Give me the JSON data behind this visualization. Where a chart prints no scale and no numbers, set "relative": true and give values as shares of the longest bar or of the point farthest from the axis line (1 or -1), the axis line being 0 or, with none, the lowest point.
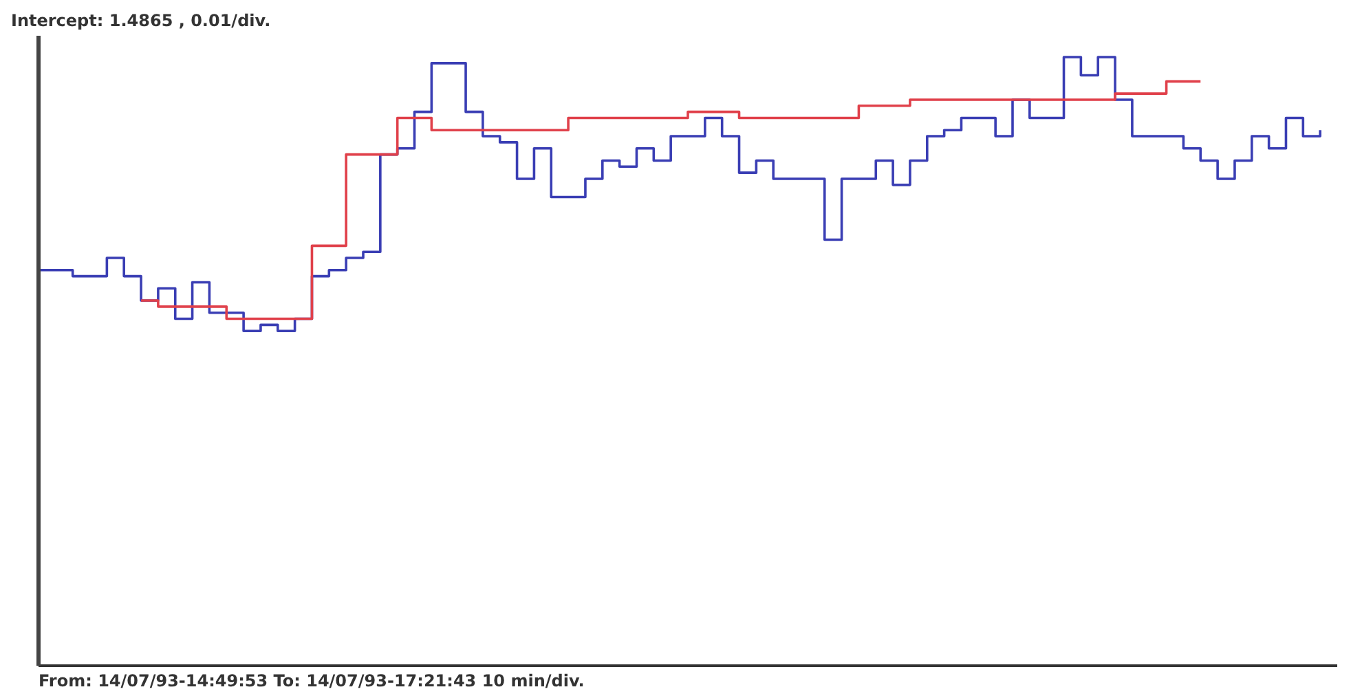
{
  "chart_data": {
    "type": "step",
    "title": "Intercept: 1.4865 , 0.01/div.",
    "annotations": [
      "From: 14/07/93-14:49:53 To: 14/07/93-17:21:43 10 min/div."
    ],
    "relative": true,
    "categories": [
      null,
      null,
      null,
      null,
      null,
      null,
      null,
      null,
      null,
      null,
      null,
      null,
      null,
      null,
      null,
      null,
      null,
      null,
      null,
      null,
      null,
      null,
      null,
      null,
      null,
      null,
      null,
      null,
      null,
      null,
      null,
      null,
      null,
      null,
      null,
      null,
      null,
      null,
      null,
      null,
      null,
      null,
      null,
      null,
      null,
      null,
      null,
      null,
      null,
      null,
      null,
      null,
      null,
      null,
      null,
      null,
      null,
      null,
      null,
      null,
      null,
      null,
      null,
      null,
      null,
      null,
      null,
      null,
      null,
      null,
      null,
      null,
      null,
      null,
      null,
      null,
      null
    ],
    "series": [
      {
        "color": "#3a3eb4",
        "values": [
          0.65,
          0.65,
          0.64,
          0.64,
          0.67,
          0.64,
          0.6,
          0.62,
          0.57,
          0.63,
          0.58,
          0.58,
          0.55,
          0.56,
          0.55,
          0.57,
          0.64,
          0.65,
          0.67,
          0.68,
          0.84,
          0.85,
          0.91,
          0.99,
          0.99,
          0.91,
          0.87,
          0.86,
          0.8,
          0.85,
          0.77,
          0.77,
          0.8,
          0.83,
          0.82,
          0.85,
          0.83,
          0.87,
          0.87,
          0.9,
          0.87,
          0.81,
          0.83,
          0.8,
          0.8,
          0.8,
          0.7,
          0.8,
          0.8,
          0.83,
          0.79,
          0.83,
          0.87,
          0.88,
          0.9,
          0.9,
          0.87,
          0.93,
          0.9,
          0.9,
          1.0,
          0.97,
          1.0,
          0.93,
          0.87,
          0.87,
          0.87,
          0.85,
          0.83,
          0.8,
          0.83,
          0.87,
          0.85,
          0.9,
          0.87,
          0.88,
          null
        ]
      },
      {
        "color": "#e0404a",
        "values": [
          null,
          null,
          null,
          null,
          null,
          null,
          0.6,
          0.59,
          0.59,
          0.59,
          0.59,
          0.57,
          0.57,
          0.57,
          0.57,
          0.57,
          0.69,
          0.69,
          0.84,
          0.84,
          0.84,
          0.9,
          0.9,
          0.88,
          0.88,
          0.88,
          0.88,
          0.88,
          0.88,
          0.88,
          0.88,
          0.9,
          0.9,
          0.9,
          0.9,
          0.9,
          0.9,
          0.9,
          0.91,
          0.91,
          0.91,
          0.9,
          0.9,
          0.9,
          0.9,
          0.9,
          0.9,
          0.9,
          0.92,
          0.92,
          0.92,
          0.93,
          0.93,
          0.93,
          0.93,
          0.93,
          0.93,
          0.93,
          0.93,
          0.93,
          0.93,
          0.93,
          0.93,
          0.94,
          0.94,
          0.94,
          0.96,
          0.96,
          0.96,
          null,
          null,
          null,
          null,
          null,
          null,
          null,
          null
        ]
      }
    ]
  }
}
